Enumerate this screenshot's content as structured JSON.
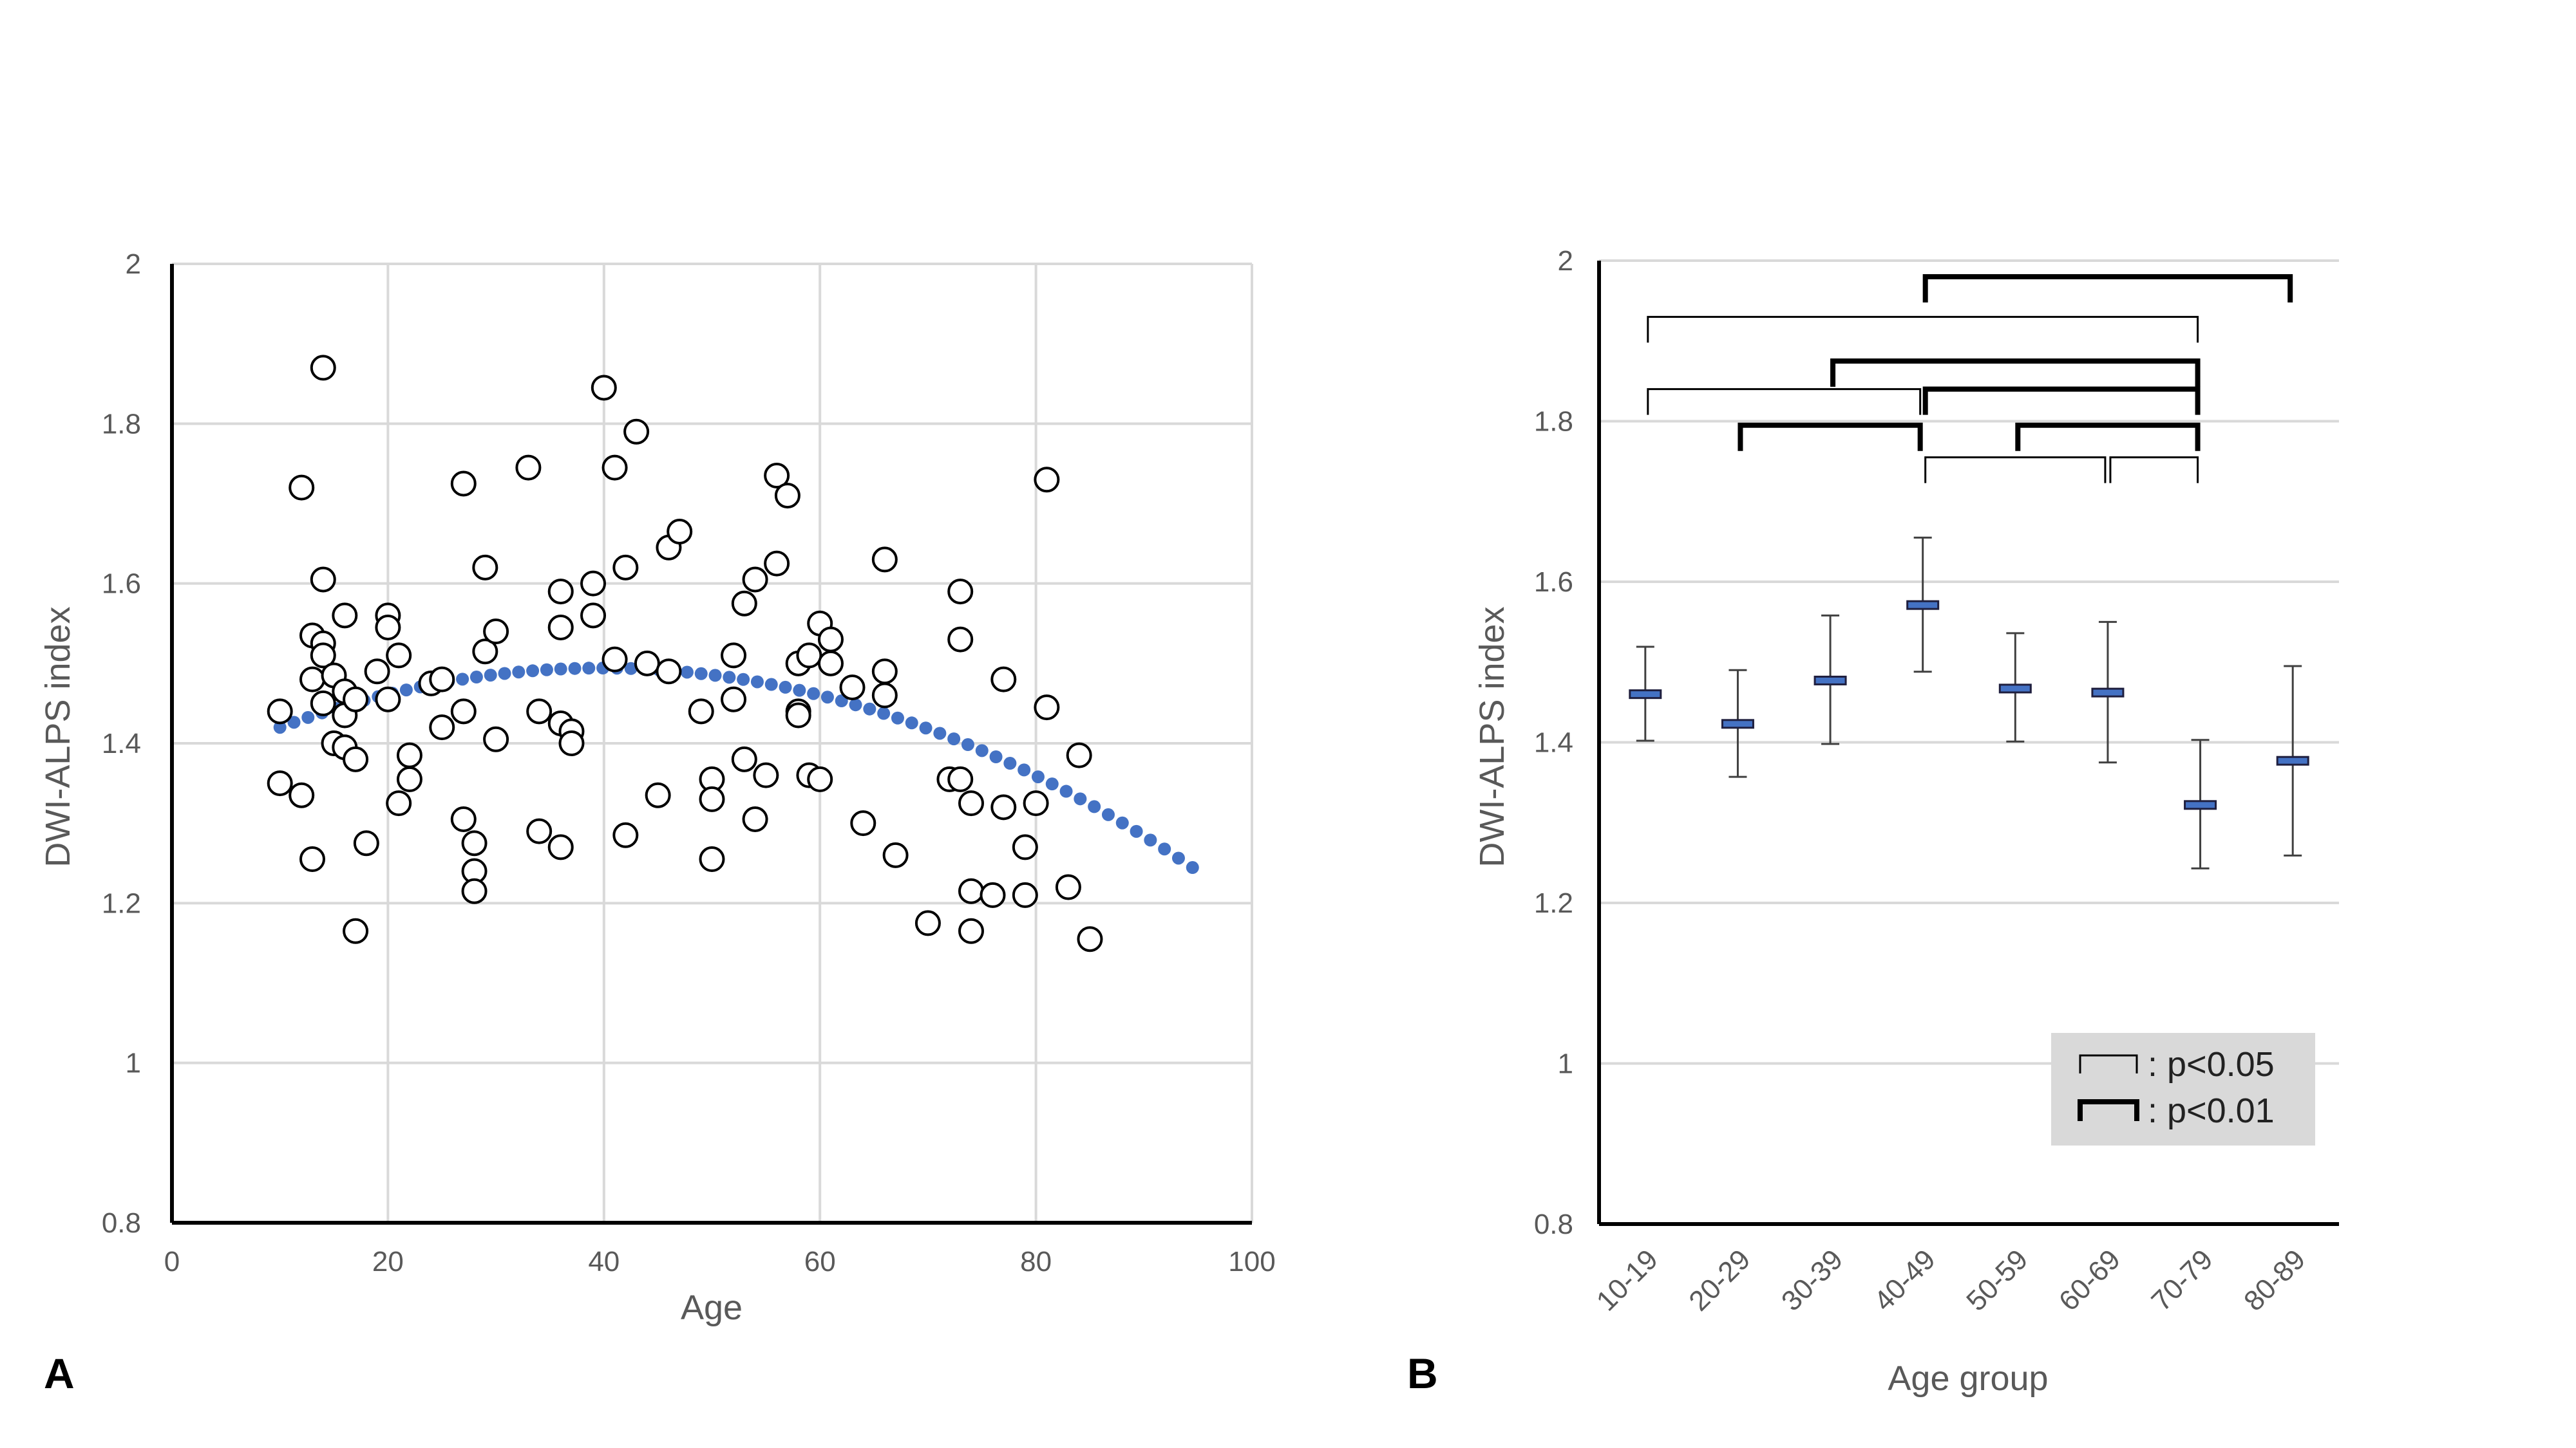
{
  "chart_data": [
    {
      "panel": "A",
      "type": "scatter",
      "xlabel": "Age",
      "ylabel": "DWI-ALPS index",
      "xlim": [
        0,
        100
      ],
      "ylim": [
        0.8,
        2
      ],
      "x_ticks": [
        "0",
        "20",
        "40",
        "60",
        "80",
        "100"
      ],
      "y_ticks": [
        "0.8",
        "1",
        "1.2",
        "1.4",
        "1.6",
        "1.8",
        "2"
      ],
      "grid": true,
      "colors": {
        "points_edge": "#000000",
        "trend": "#4472C4",
        "grid": "#d9d9d9",
        "axis": "#000000"
      },
      "series": [
        {
          "name": "subjects",
          "marker": "open-circle",
          "points": [
            [
              10,
              1.44
            ],
            [
              10,
              1.35
            ],
            [
              12,
              1.72
            ],
            [
              12,
              1.335
            ],
            [
              13,
              1.255
            ],
            [
              13,
              1.535
            ],
            [
              13,
              1.48
            ],
            [
              14,
              1.87
            ],
            [
              14,
              1.605
            ],
            [
              14,
              1.525
            ],
            [
              14,
              1.51
            ],
            [
              14,
              1.45
            ],
            [
              15,
              1.485
            ],
            [
              15,
              1.4
            ],
            [
              16,
              1.56
            ],
            [
              16,
              1.465
            ],
            [
              16,
              1.435
            ],
            [
              16,
              1.395
            ],
            [
              17,
              1.455
            ],
            [
              17,
              1.38
            ],
            [
              17,
              1.165
            ],
            [
              18,
              1.275
            ],
            [
              19,
              1.49
            ],
            [
              20,
              1.56
            ],
            [
              20,
              1.545
            ],
            [
              20,
              1.455
            ],
            [
              21,
              1.51
            ],
            [
              21,
              1.325
            ],
            [
              22,
              1.385
            ],
            [
              22,
              1.355
            ],
            [
              24,
              1.475
            ],
            [
              25,
              1.48
            ],
            [
              25,
              1.42
            ],
            [
              27,
              1.725
            ],
            [
              27,
              1.44
            ],
            [
              27,
              1.305
            ],
            [
              28,
              1.275
            ],
            [
              28,
              1.24
            ],
            [
              28,
              1.215
            ],
            [
              29,
              1.62
            ],
            [
              29,
              1.515
            ],
            [
              30,
              1.54
            ],
            [
              30,
              1.405
            ],
            [
              33,
              1.745
            ],
            [
              34,
              1.44
            ],
            [
              34,
              1.29
            ],
            [
              36,
              1.59
            ],
            [
              36,
              1.545
            ],
            [
              36,
              1.425
            ],
            [
              36,
              1.27
            ],
            [
              37,
              1.415
            ],
            [
              37,
              1.4
            ],
            [
              39,
              1.6
            ],
            [
              39,
              1.56
            ],
            [
              40,
              1.845
            ],
            [
              41,
              1.745
            ],
            [
              41,
              1.505
            ],
            [
              42,
              1.62
            ],
            [
              42,
              1.285
            ],
            [
              43,
              1.79
            ],
            [
              44,
              1.5
            ],
            [
              45,
              1.335
            ],
            [
              46,
              1.645
            ],
            [
              46,
              1.49
            ],
            [
              47,
              1.665
            ],
            [
              49,
              1.44
            ],
            [
              50,
              1.355
            ],
            [
              50,
              1.33
            ],
            [
              50,
              1.255
            ],
            [
              52,
              1.51
            ],
            [
              52,
              1.455
            ],
            [
              53,
              1.575
            ],
            [
              53,
              1.38
            ],
            [
              54,
              1.605
            ],
            [
              54,
              1.305
            ],
            [
              55,
              1.36
            ],
            [
              56,
              1.735
            ],
            [
              56,
              1.625
            ],
            [
              57,
              1.71
            ],
            [
              58,
              1.5
            ],
            [
              58,
              1.44
            ],
            [
              58,
              1.435
            ],
            [
              59,
              1.51
            ],
            [
              59,
              1.36
            ],
            [
              60,
              1.55
            ],
            [
              60,
              1.355
            ],
            [
              61,
              1.53
            ],
            [
              61,
              1.5
            ],
            [
              63,
              1.47
            ],
            [
              64,
              1.3
            ],
            [
              66,
              1.63
            ],
            [
              66,
              1.49
            ],
            [
              66,
              1.46
            ],
            [
              67,
              1.26
            ],
            [
              70,
              1.175
            ],
            [
              72,
              1.355
            ],
            [
              73,
              1.59
            ],
            [
              73,
              1.53
            ],
            [
              73,
              1.355
            ],
            [
              74,
              1.325
            ],
            [
              74,
              1.215
            ],
            [
              74,
              1.165
            ],
            [
              76,
              1.21
            ],
            [
              77,
              1.48
            ],
            [
              77,
              1.32
            ],
            [
              79,
              1.27
            ],
            [
              79,
              1.21
            ],
            [
              80,
              1.325
            ],
            [
              81,
              1.73
            ],
            [
              81,
              1.445
            ],
            [
              83,
              1.22
            ],
            [
              84,
              1.385
            ],
            [
              85,
              1.155
            ]
          ]
        },
        {
          "name": "quadratic trend",
          "style": "dotted",
          "x_range": [
            10,
            95
          ],
          "coefficients": {
            "a": -8.35e-05,
            "b": 0.00665,
            "c": 1.3618
          }
        }
      ]
    },
    {
      "panel": "B",
      "type": "errorbar",
      "xlabel": "Age group",
      "ylabel": "DWI-ALPS index",
      "ylim": [
        0.8,
        2
      ],
      "y_ticks": [
        "0.8",
        "1",
        "1.2",
        "1.4",
        "1.6",
        "1.8",
        "2"
      ],
      "grid": true,
      "categories": [
        "10-19",
        "20-29",
        "30-39",
        "40-49",
        "50-59",
        "60-69",
        "70-79",
        "80-89"
      ],
      "means": [
        1.46,
        1.423,
        1.477,
        1.571,
        1.467,
        1.462,
        1.322,
        1.377
      ],
      "lower": [
        1.402,
        1.357,
        1.398,
        1.488,
        1.401,
        1.375,
        1.243,
        1.259
      ],
      "upper": [
        1.519,
        1.49,
        1.558,
        1.655,
        1.536,
        1.55,
        1.403,
        1.495
      ],
      "colors": {
        "mean_marker": "#4472C4",
        "bracket": "#000000",
        "grid": "#d9d9d9",
        "legend_bg": "#d9d9d9"
      },
      "significance": [
        {
          "from": "40-49",
          "to": "80-89",
          "level": "p<0.01",
          "y": 1.98
        },
        {
          "from": "10-19",
          "to": "70-79",
          "level": "p<0.05",
          "y": 1.93
        },
        {
          "from": "30-39",
          "to": "70-79",
          "level": "p<0.01",
          "y": 1.875
        },
        {
          "from": "10-19",
          "to": "40-49",
          "level": "p<0.05",
          "y": 1.84
        },
        {
          "from": "40-49",
          "to": "70-79",
          "level": "p<0.01",
          "y": 1.84
        },
        {
          "from": "20-29",
          "to": "40-49",
          "level": "p<0.01",
          "y": 1.795
        },
        {
          "from": "50-59",
          "to": "70-79",
          "level": "p<0.01",
          "y": 1.795
        },
        {
          "from": "40-49",
          "to": "60-69",
          "level": "p<0.05",
          "y": 1.755
        },
        {
          "from": "60-69",
          "to": "70-79",
          "level": "p<0.05",
          "y": 1.755
        }
      ],
      "legend": [
        {
          "label": ": p<0.05",
          "level": "p<0.05"
        },
        {
          "label": ": p<0.01",
          "level": "p<0.01"
        }
      ]
    }
  ]
}
